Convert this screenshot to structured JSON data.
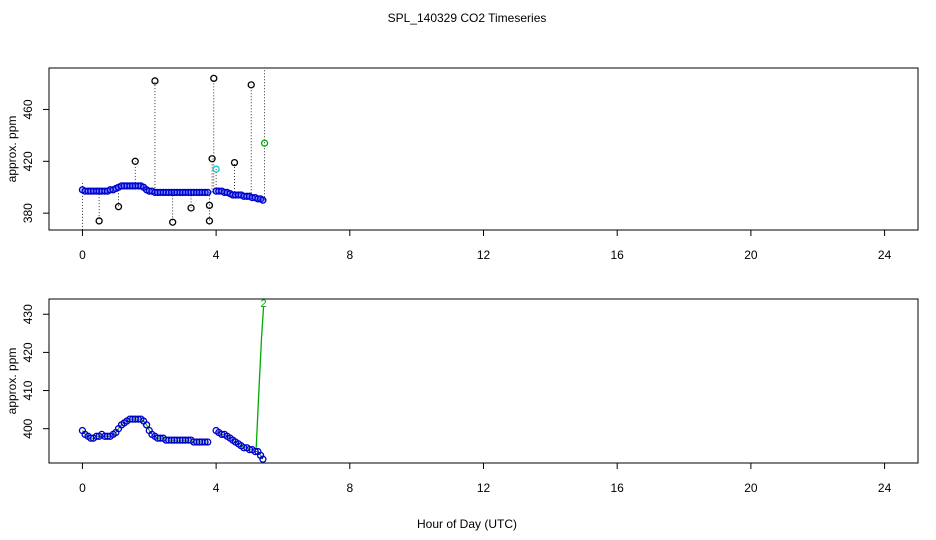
{
  "title": "SPL_140329  CO2 Timeseries",
  "xlabel": "Hour of Day (UTC)",
  "chart_data": [
    {
      "type": "scatter",
      "ylabel": "approx. ppm",
      "xlim": [
        -1,
        25
      ],
      "ylim": [
        367,
        492
      ],
      "xticks": [
        0,
        4,
        8,
        12,
        16,
        20,
        24
      ],
      "yticks": [
        380,
        420,
        460
      ],
      "grid": false,
      "series": [
        {
          "color": "#0000cc",
          "fill": "#1e3cff",
          "x": [
            0.0,
            0.08,
            0.17,
            0.25,
            0.33,
            0.42,
            0.5,
            0.58,
            0.67,
            0.75,
            0.83,
            0.92,
            1.0,
            1.08,
            1.17,
            1.25,
            1.33,
            1.42,
            1.5,
            1.58,
            1.67,
            1.75,
            1.83,
            1.92,
            2.0,
            2.08,
            2.17,
            2.25,
            2.33,
            2.42,
            2.5,
            2.58,
            2.67,
            2.75,
            2.83,
            2.92,
            3.0,
            3.08,
            3.17,
            3.25,
            3.33,
            3.42,
            3.5,
            3.58,
            3.67,
            3.75,
            4.0,
            4.08,
            4.17,
            4.25,
            4.33,
            4.42,
            4.5,
            4.58,
            4.67,
            4.75,
            4.83,
            4.92,
            5.0,
            5.08,
            5.17,
            5.25,
            5.33,
            5.4
          ],
          "y": [
            398,
            397,
            397,
            397,
            397,
            397,
            397,
            397,
            397,
            397,
            398,
            398,
            399,
            400,
            401,
            401,
            401,
            401,
            401,
            401,
            401,
            401,
            400,
            398,
            397,
            397,
            396,
            396,
            396,
            396,
            396,
            396,
            396,
            396,
            396,
            396,
            396,
            396,
            396,
            396,
            396,
            396,
            396,
            396,
            396,
            396,
            397,
            397,
            397,
            396,
            396,
            395,
            394,
            394,
            394,
            394,
            393,
            393,
            393,
            392,
            392,
            391,
            391,
            390
          ]
        },
        {
          "color": "#000000",
          "x": [
            0.5,
            1.08,
            1.58,
            2.17,
            2.7,
            3.25,
            3.8,
            3.8,
            3.88,
            3.93,
            4.55,
            5.05
          ],
          "y": [
            374,
            385,
            420,
            482,
            373,
            384,
            374,
            386,
            422,
            484,
            419,
            479
          ]
        },
        {
          "color": "#00cccc",
          "x": [
            4.0
          ],
          "y": [
            414
          ]
        },
        {
          "color": "#00aa00",
          "x": [
            5.45
          ],
          "y": [
            434
          ]
        }
      ],
      "stems": [
        {
          "x": 0.0,
          "from": 398,
          "to": 405
        },
        {
          "x": 0.0,
          "from": 398,
          "to": 367
        },
        {
          "x": 0.5,
          "from": 397,
          "to": 374
        },
        {
          "x": 1.08,
          "from": 400,
          "to": 385
        },
        {
          "x": 1.58,
          "from": 401,
          "to": 420
        },
        {
          "x": 2.17,
          "from": 397,
          "to": 482
        },
        {
          "x": 2.7,
          "from": 396,
          "to": 373
        },
        {
          "x": 3.25,
          "from": 396,
          "to": 384
        },
        {
          "x": 3.8,
          "from": 396,
          "to": 374
        },
        {
          "x": 3.88,
          "from": 396,
          "to": 422
        },
        {
          "x": 3.93,
          "from": 396,
          "to": 484
        },
        {
          "x": 4.0,
          "from": 397,
          "to": 414
        },
        {
          "x": 4.55,
          "from": 394,
          "to": 419
        },
        {
          "x": 5.05,
          "from": 393,
          "to": 479
        },
        {
          "x": 5.45,
          "from": 390,
          "to": 492
        }
      ]
    },
    {
      "type": "scatter",
      "ylabel": "approx. ppm",
      "xlim": [
        -1,
        25
      ],
      "ylim": [
        391,
        434
      ],
      "xticks": [
        0,
        4,
        8,
        12,
        16,
        20,
        24
      ],
      "yticks": [
        400,
        410,
        420,
        430
      ],
      "grid": false,
      "series": [
        {
          "color": "#0000cc",
          "line_color": "#00aa00",
          "x": [
            0.0,
            0.08,
            0.17,
            0.25,
            0.33,
            0.42,
            0.5,
            0.58,
            0.67,
            0.75,
            0.83,
            0.92,
            1.0,
            1.08,
            1.17,
            1.25,
            1.33,
            1.42,
            1.5,
            1.58,
            1.67,
            1.75,
            1.83,
            1.92,
            2.0,
            2.08,
            2.17,
            2.25,
            2.33,
            2.42,
            2.5,
            2.58,
            2.67,
            2.75,
            2.83,
            2.92,
            3.0,
            3.08,
            3.17,
            3.25,
            3.33,
            3.42,
            3.5,
            3.58,
            3.67,
            3.75
          ],
          "y": [
            399.5,
            398.5,
            398,
            397.5,
            397.5,
            398,
            398,
            398.5,
            398,
            398,
            398,
            398.5,
            399,
            400,
            401,
            401.5,
            402,
            402.5,
            402.5,
            402.5,
            402.5,
            402.5,
            402,
            401,
            399.5,
            398.5,
            398,
            397.5,
            397.5,
            397.5,
            397,
            397,
            397,
            397,
            397,
            397,
            397,
            397,
            397,
            397,
            396.5,
            396.5,
            396.5,
            396.5,
            396.5,
            396.5
          ]
        },
        {
          "color": "#0000cc",
          "line_color": "#00aa00",
          "x": [
            4.0,
            4.08,
            4.17,
            4.25,
            4.33,
            4.42,
            4.5,
            4.58,
            4.67,
            4.75,
            4.83,
            4.92,
            5.0,
            5.08,
            5.17,
            5.25,
            5.33,
            5.4
          ],
          "y": [
            399.5,
            399,
            398.5,
            398.5,
            398,
            397.5,
            397,
            396.5,
            396,
            395.5,
            395,
            395,
            394.5,
            394.5,
            394,
            394,
            393,
            392
          ]
        },
        {
          "color": "#00aa00",
          "x": [
            5.2,
            5.28,
            5.36,
            5.42
          ],
          "y": [
            395,
            410,
            424,
            432
          ]
        }
      ],
      "annotations": [
        {
          "text": "2",
          "x": 5.42,
          "y": 433,
          "color": "#00aa00"
        }
      ]
    }
  ]
}
